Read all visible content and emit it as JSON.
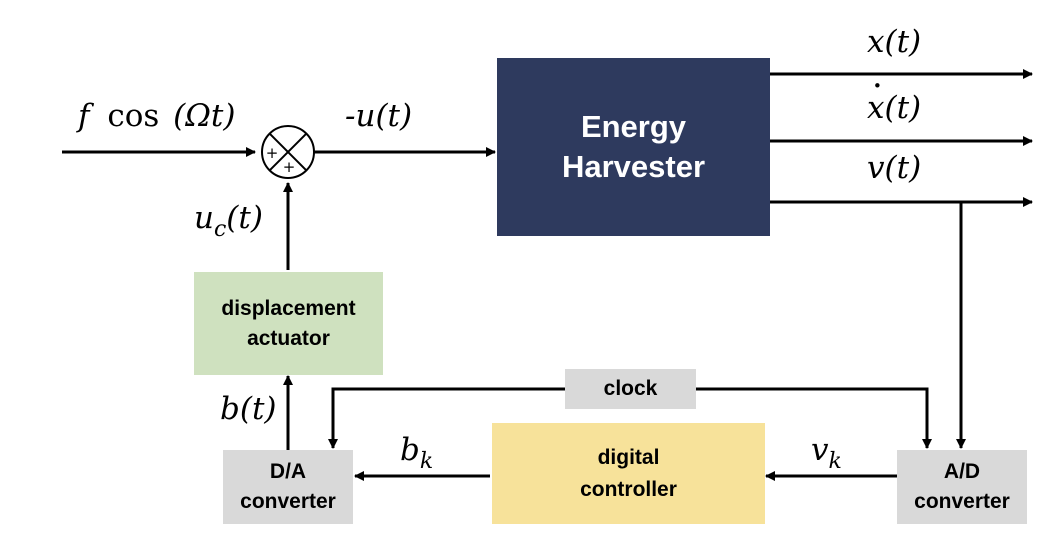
{
  "blocks": {
    "harvester": {
      "line1": "Energy",
      "line2": "Harvester",
      "fill": "#2e3a5e",
      "text_color": "#ffffff"
    },
    "actuator": {
      "line1": "displacement",
      "line2": "actuator",
      "fill": "#cfe1bf"
    },
    "controller": {
      "line1": "digital",
      "line2": "controller",
      "fill": "#f7e29a"
    },
    "clock": {
      "label": "clock",
      "fill": "#d9d9d9"
    },
    "da": {
      "line1": "D/A",
      "line2": "converter",
      "fill": "#d9d9d9"
    },
    "ad": {
      "line1": "A/D",
      "line2": "converter",
      "fill": "#d9d9d9"
    }
  },
  "summing_junction": {
    "sign_top": "+",
    "sign_bottom": "+"
  },
  "signals": {
    "input_f": "f",
    "input_cos": "cos",
    "input_arg": "(Ωt)",
    "neg_u": "-u(t)",
    "x": "x(t)",
    "xdot_base": "x",
    "xdot_dot": "·",
    "xdot_rest": "(t)",
    "v": "v(t)",
    "uc_main": "u",
    "uc_sub": "c",
    "uc_rest": "(t)",
    "b": "b(t)",
    "bk_main": "b",
    "bk_sub": "k",
    "vk_main": "v",
    "vk_sub": "k"
  }
}
